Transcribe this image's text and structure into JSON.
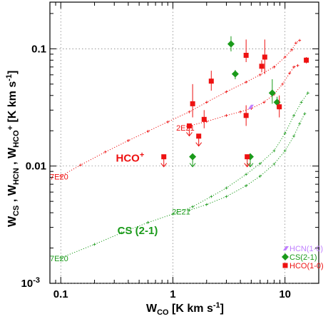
{
  "chart_data": {
    "type": "scatter",
    "xlabel": "W",
    "xlabel_sub": "CO",
    "xlabel_unit": " [K km s",
    "xlabel_sup": "-1",
    "xlabel_end": "]",
    "ylabel_parts": [
      "W",
      "CS",
      " , W",
      "HCN",
      " , W",
      "HCO",
      "+",
      " [K km s",
      "-1",
      "]"
    ],
    "x_scale": "log",
    "y_scale": "log",
    "xlim": [
      0.08,
      20
    ],
    "ylim": [
      0.001,
      0.25
    ],
    "x_ticks": [
      {
        "v": 0.1,
        "label": "0.1"
      },
      {
        "v": 1,
        "label": "1"
      },
      {
        "v": 10,
        "label": "10"
      }
    ],
    "y_ticks": [
      {
        "v": 0.001,
        "label": "10",
        "sup": "-3"
      },
      {
        "v": 0.01,
        "label": "0.01"
      },
      {
        "v": 0.1,
        "label": "0.1"
      }
    ],
    "grid": true,
    "legend_position": "bottom-right",
    "colors": {
      "hcn": "#c080ff",
      "cs": "#1a9a1a",
      "hco": "#ee1111"
    },
    "series": [
      {
        "name": "HCN(1-0)",
        "key": "hcn",
        "marker": "parallelogram",
        "points": [
          {
            "x": 4.9,
            "y": 0.032
          }
        ]
      },
      {
        "name": "CS(2-1)",
        "key": "cs",
        "marker": "diamond",
        "points": [
          {
            "x": 3.3,
            "y": 0.11,
            "err": [
              0.095,
              0.128
            ]
          },
          {
            "x": 3.6,
            "y": 0.061,
            "err": [
              0.055,
              0.066
            ]
          },
          {
            "x": 7.7,
            "y": 0.042,
            "err": [
              0.034,
              0.055
            ]
          },
          {
            "x": 8.5,
            "y": 0.035,
            "err": [
              0.031,
              0.039
            ]
          },
          {
            "x": 1.5,
            "y": 0.012,
            "upper": true
          },
          {
            "x": 4.9,
            "y": 0.012,
            "upper": true
          }
        ]
      },
      {
        "name": "HCO(1-0)",
        "key": "hco",
        "marker": "square",
        "points": [
          {
            "x": 4.5,
            "y": 0.088,
            "err": [
              0.077,
              0.12
            ]
          },
          {
            "x": 6.6,
            "y": 0.085,
            "err": [
              0.061,
              0.12
            ]
          },
          {
            "x": 6.2,
            "y": 0.071,
            "err": [
              0.063,
              0.08
            ]
          },
          {
            "x": 15.5,
            "y": 0.08,
            "err": [
              0.075,
              0.085
            ]
          },
          {
            "x": 2.2,
            "y": 0.053,
            "err": [
              0.044,
              0.065
            ]
          },
          {
            "x": 1.5,
            "y": 0.034,
            "err": [
              0.026,
              0.05
            ]
          },
          {
            "x": 4.5,
            "y": 0.027,
            "err": [
              0.022,
              0.033
            ]
          },
          {
            "x": 8.9,
            "y": 0.032,
            "err": [
              0.026,
              0.04
            ]
          },
          {
            "x": 1.9,
            "y": 0.025,
            "err": [
              0.021,
              0.03
            ]
          },
          {
            "x": 1.4,
            "y": 0.022,
            "upper": true
          },
          {
            "x": 1.7,
            "y": 0.018,
            "upper": true
          },
          {
            "x": 0.83,
            "y": 0.012,
            "upper": true
          },
          {
            "x": 4.6,
            "y": 0.012,
            "upper": true
          }
        ]
      }
    ],
    "model_curves": [
      {
        "key": "hco",
        "points": [
          [
            0.1,
            0.0082
          ],
          [
            0.15,
            0.0102
          ],
          [
            0.25,
            0.0132
          ],
          [
            0.4,
            0.0165
          ],
          [
            0.6,
            0.0198
          ],
          [
            0.9,
            0.0238
          ],
          [
            1.4,
            0.029
          ],
          [
            2.0,
            0.035
          ],
          [
            3.0,
            0.043
          ],
          [
            4.5,
            0.052
          ],
          [
            6.0,
            0.06
          ],
          [
            8.0,
            0.07
          ],
          [
            10.0,
            0.085
          ],
          [
            11.5,
            0.098
          ],
          [
            12.5,
            0.112
          ],
          [
            13.5,
            0.118
          ]
        ]
      },
      {
        "key": "hco",
        "points": [
          [
            1.4,
            0.022
          ],
          [
            2.0,
            0.024
          ],
          [
            3.0,
            0.027
          ],
          [
            4.0,
            0.029
          ],
          [
            5.0,
            0.031
          ],
          [
            6.5,
            0.035
          ],
          [
            8.0,
            0.041
          ],
          [
            9.5,
            0.05
          ],
          [
            11.0,
            0.062
          ],
          [
            12.0,
            0.07
          ],
          [
            13.0,
            0.072
          ]
        ]
      },
      {
        "key": "cs",
        "points": [
          [
            0.1,
            0.00165
          ],
          [
            0.2,
            0.00215
          ],
          [
            0.35,
            0.0027
          ],
          [
            0.6,
            0.0033
          ],
          [
            1.0,
            0.0039
          ],
          [
            1.5,
            0.0045
          ],
          [
            2.2,
            0.0055
          ],
          [
            3.0,
            0.0065
          ],
          [
            4.5,
            0.0085
          ],
          [
            6.0,
            0.0105
          ],
          [
            8.0,
            0.0135
          ],
          [
            10.0,
            0.019
          ],
          [
            12.0,
            0.027
          ],
          [
            14.0,
            0.035
          ],
          [
            16.0,
            0.042
          ]
        ]
      },
      {
        "key": "cs",
        "points": [
          [
            1.4,
            0.0042
          ],
          [
            2.0,
            0.0047
          ],
          [
            3.0,
            0.0055
          ],
          [
            4.5,
            0.0068
          ],
          [
            6.0,
            0.0082
          ],
          [
            8.0,
            0.0104
          ],
          [
            10.0,
            0.0135
          ],
          [
            12.0,
            0.018
          ],
          [
            13.5,
            0.023
          ],
          [
            15.0,
            0.028
          ]
        ]
      }
    ],
    "annotations": [
      {
        "text": "7E20",
        "x": 0.08,
        "y": 0.0081,
        "key": "hco",
        "anchor": "start",
        "size": "small"
      },
      {
        "text": "7E20",
        "x": 0.08,
        "y": 0.00163,
        "key": "cs",
        "anchor": "start",
        "size": "small"
      },
      {
        "text": "2E21",
        "x": 1.07,
        "y": 0.0212,
        "key": "hco",
        "anchor": "start",
        "size": "small"
      },
      {
        "text": "2E21",
        "x": 0.98,
        "y": 0.0041,
        "key": "cs",
        "anchor": "start",
        "size": "small"
      },
      {
        "text": "HCO",
        "sup": "+",
        "x": 0.31,
        "y": 0.0115,
        "key": "hco",
        "anchor": "start",
        "size": "big"
      },
      {
        "text": "CS (2-1)",
        "x": 0.32,
        "y": 0.00278,
        "key": "cs",
        "anchor": "start",
        "size": "big"
      }
    ]
  }
}
